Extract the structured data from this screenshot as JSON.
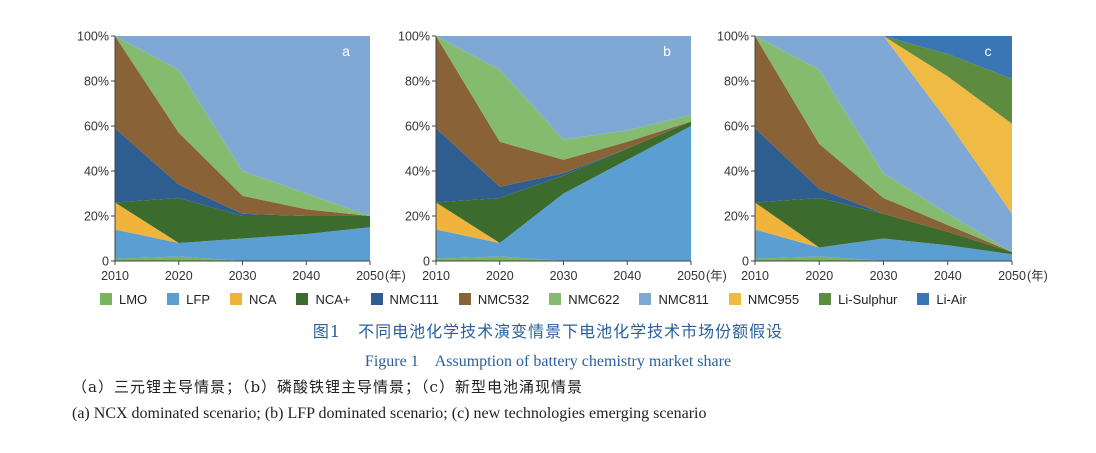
{
  "colors": {
    "LMO": "#7ab55c",
    "LFP": "#5b9fd2",
    "NCA": "#f0b43c",
    "NCA+": "#3b6b2d",
    "NMC111": "#2e5d8f",
    "NMC532": "#8a6238",
    "NMC622": "#85bb6e",
    "NMC811": "#7fa9d4",
    "NMC955": "#f0bb45",
    "Li-Sulphur": "#5d8b3f",
    "Li-Air": "#3a76b6"
  },
  "legend": [
    "LMO",
    "LFP",
    "NCA",
    "NCA+",
    "NMC111",
    "NMC532",
    "NMC622",
    "NMC811",
    "NMC955",
    "Li-Sulphur",
    "Li-Air"
  ],
  "chart_data": [
    {
      "type": "area",
      "panel": "a",
      "x": [
        2010,
        2020,
        2030,
        2040,
        2050
      ],
      "x_tick_labels": [
        "2010",
        "2020",
        "2030",
        "2040",
        "2050"
      ],
      "x_unit": "(年)",
      "y_tick_labels": [
        "0",
        "20%",
        "40%",
        "60%",
        "80%",
        "100%"
      ],
      "ylim": [
        0,
        100
      ],
      "series": [
        {
          "name": "LMO",
          "values": [
            1,
            2,
            0,
            0,
            0
          ]
        },
        {
          "name": "LFP",
          "values": [
            13,
            6,
            10,
            12,
            15
          ]
        },
        {
          "name": "NCA",
          "values": [
            12,
            0,
            0,
            0,
            0
          ]
        },
        {
          "name": "NCA+",
          "values": [
            0,
            20,
            10,
            8,
            5
          ]
        },
        {
          "name": "NMC111",
          "values": [
            33,
            6,
            1,
            0,
            0
          ]
        },
        {
          "name": "NMC532",
          "values": [
            41,
            23,
            8,
            3,
            0
          ]
        },
        {
          "name": "NMC622",
          "values": [
            0,
            28,
            11,
            7,
            0
          ]
        },
        {
          "name": "NMC811",
          "values": [
            0,
            15,
            60,
            70,
            80
          ]
        }
      ]
    },
    {
      "type": "area",
      "panel": "b",
      "x": [
        2010,
        2020,
        2030,
        2040,
        2050
      ],
      "x_tick_labels": [
        "2010",
        "2020",
        "2030",
        "2040",
        "2050"
      ],
      "x_unit": "(年)",
      "y_tick_labels": [
        "0",
        "20%",
        "40%",
        "60%",
        "80%",
        "100%"
      ],
      "ylim": [
        0,
        100
      ],
      "series": [
        {
          "name": "LMO",
          "values": [
            1,
            2,
            0,
            0,
            0
          ]
        },
        {
          "name": "LFP",
          "values": [
            13,
            6,
            30,
            45,
            60
          ]
        },
        {
          "name": "NCA",
          "values": [
            12,
            0,
            0,
            0,
            0
          ]
        },
        {
          "name": "NCA+",
          "values": [
            0,
            20,
            8,
            5,
            2
          ]
        },
        {
          "name": "NMC111",
          "values": [
            33,
            5,
            1,
            0,
            0
          ]
        },
        {
          "name": "NMC532",
          "values": [
            41,
            20,
            6,
            3,
            0
          ]
        },
        {
          "name": "NMC622",
          "values": [
            0,
            32,
            9,
            5,
            3
          ]
        },
        {
          "name": "NMC811",
          "values": [
            0,
            15,
            46,
            42,
            35
          ]
        }
      ]
    },
    {
      "type": "area",
      "panel": "c",
      "x": [
        2010,
        2020,
        2030,
        2040,
        2050
      ],
      "x_tick_labels": [
        "2010",
        "2020",
        "2030",
        "2040",
        "2050"
      ],
      "x_unit": "(年)",
      "y_tick_labels": [
        "0",
        "20%",
        "40%",
        "60%",
        "80%",
        "100%"
      ],
      "ylim": [
        0,
        100
      ],
      "series": [
        {
          "name": "LMO",
          "values": [
            1,
            2,
            0,
            0,
            0
          ]
        },
        {
          "name": "LFP",
          "values": [
            13,
            4,
            10,
            7,
            3
          ]
        },
        {
          "name": "NCA",
          "values": [
            12,
            0,
            0,
            0,
            0
          ]
        },
        {
          "name": "NCA+",
          "values": [
            0,
            22,
            11,
            6,
            1
          ]
        },
        {
          "name": "NMC111",
          "values": [
            33,
            4,
            0,
            0,
            0
          ]
        },
        {
          "name": "NMC532",
          "values": [
            41,
            20,
            7,
            3,
            0
          ]
        },
        {
          "name": "NMC622",
          "values": [
            0,
            33,
            11,
            5,
            0
          ]
        },
        {
          "name": "NMC811",
          "values": [
            0,
            15,
            61,
            41,
            17
          ]
        },
        {
          "name": "NMC955",
          "values": [
            0,
            0,
            0,
            20,
            40
          ]
        },
        {
          "name": "Li-Sulphur",
          "values": [
            0,
            0,
            0,
            10,
            20
          ]
        },
        {
          "name": "Li-Air",
          "values": [
            0,
            0,
            0,
            8,
            19
          ]
        }
      ]
    }
  ],
  "captions": {
    "figure_cn": "图1　不同电池化学技术演变情景下电池化学技术市场份额假设",
    "figure_en": "Figure 1　Assumption of battery chemistry market share",
    "note_cn": "（a）三元锂主导情景；（b）磷酸铁锂主导情景；（c）新型电池涌现情景",
    "note_en": "(a) NCX dominated scenario; (b) LFP dominated scenario; (c) new technologies emerging scenario"
  }
}
